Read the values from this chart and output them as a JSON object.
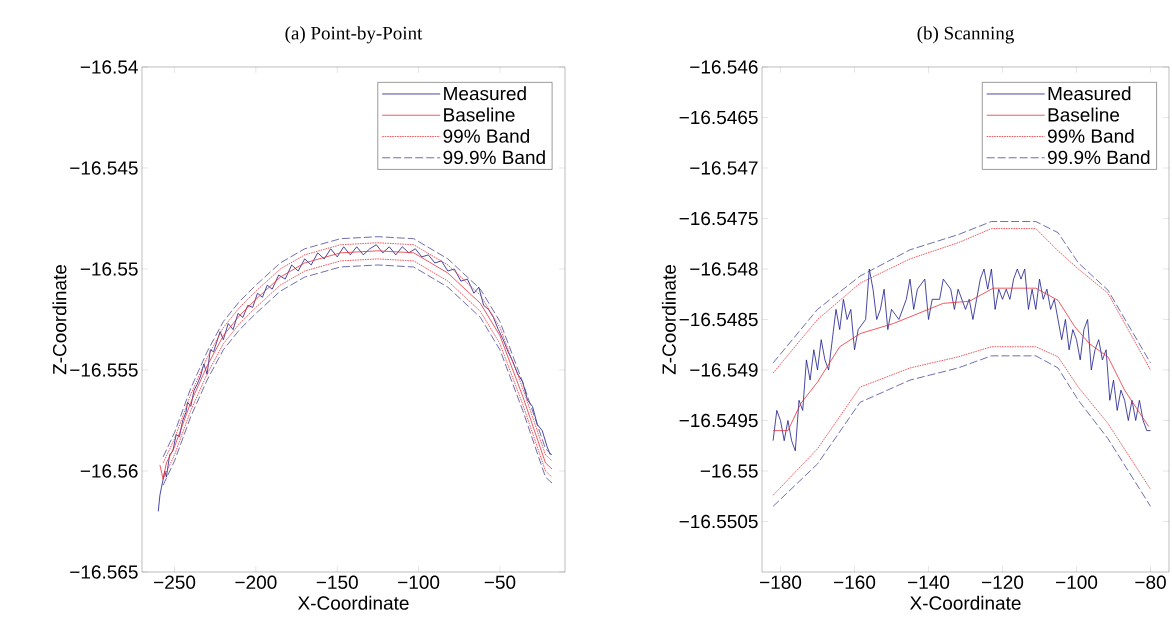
{
  "chart_data": [
    {
      "type": "line",
      "title": "(a) Point-by-Point",
      "xlabel": "X-Coordinate",
      "ylabel": "Z-Coordinate",
      "legend": "top right",
      "grid": false,
      "xlim": [
        -270,
        -10
      ],
      "ylim": [
        -16.565,
        -16.54
      ],
      "xticks": [
        {
          "value": -250,
          "label": "−250"
        },
        {
          "value": -200,
          "label": "−200"
        },
        {
          "value": -150,
          "label": "−150"
        },
        {
          "value": -100,
          "label": "−100"
        },
        {
          "value": -50,
          "label": "−50"
        }
      ],
      "yticks": [
        {
          "value": -16.565,
          "label": "−16.565"
        },
        {
          "value": -16.56,
          "label": "−16.56"
        },
        {
          "value": -16.555,
          "label": "−16.555"
        },
        {
          "value": -16.55,
          "label": "−16.55"
        },
        {
          "value": -16.545,
          "label": "−16.545"
        },
        {
          "value": -16.54,
          "label": "−16.54"
        }
      ],
      "series": [
        {
          "name": "Measured",
          "color": "#1a1a8c",
          "line_style": "solid",
          "x": [
            -260,
            -259,
            -258,
            -256,
            -255,
            -253,
            -251,
            -249,
            -247,
            -245,
            -243,
            -242,
            -240,
            -238,
            -236,
            -234,
            -232,
            -230,
            -228,
            -226,
            -224,
            -222,
            -220,
            -217,
            -214,
            -211,
            -208,
            -205,
            -202,
            -199,
            -196,
            -193,
            -190,
            -186,
            -182,
            -178,
            -174,
            -170,
            -166,
            -162,
            -158,
            -154,
            -150,
            -146,
            -142,
            -138,
            -134,
            -130,
            -126,
            -122,
            -118,
            -114,
            -110,
            -106,
            -102,
            -98,
            -94,
            -90,
            -86,
            -82,
            -78,
            -74,
            -70,
            -66,
            -63,
            -60,
            -57,
            -54,
            -51,
            -48,
            -45,
            -42,
            -39,
            -36,
            -33,
            -30,
            -27,
            -24,
            -21,
            -19
          ],
          "values": [
            -16.562,
            -16.5612,
            -16.5608,
            -16.56,
            -16.5603,
            -16.5592,
            -16.559,
            -16.5582,
            -16.5583,
            -16.5575,
            -16.5571,
            -16.5566,
            -16.5568,
            -16.556,
            -16.5557,
            -16.5553,
            -16.5547,
            -16.5552,
            -16.554,
            -16.5541,
            -16.5536,
            -16.5531,
            -16.5535,
            -16.5527,
            -16.553,
            -16.5522,
            -16.5524,
            -16.5518,
            -16.5519,
            -16.5512,
            -16.5514,
            -16.5508,
            -16.551,
            -16.5503,
            -16.5505,
            -16.5498,
            -16.5501,
            -16.5495,
            -16.5498,
            -16.5492,
            -16.5495,
            -16.549,
            -16.5494,
            -16.5489,
            -16.5493,
            -16.5489,
            -16.5493,
            -16.549,
            -16.5488,
            -16.5492,
            -16.5489,
            -16.5493,
            -16.5489,
            -16.5492,
            -16.549,
            -16.5494,
            -16.5493,
            -16.5497,
            -16.5496,
            -16.5501,
            -16.55,
            -16.5506,
            -16.5505,
            -16.5512,
            -16.5509,
            -16.5518,
            -16.552,
            -16.5524,
            -16.553,
            -16.5535,
            -16.5541,
            -16.5546,
            -16.5552,
            -16.5556,
            -16.5565,
            -16.5568,
            -16.5577,
            -16.558,
            -16.5588,
            -16.5592
          ]
        },
        {
          "name": "Baseline",
          "color": "#e8303a",
          "line_style": "solid",
          "x": [
            -259,
            -257,
            -255,
            -250,
            -240,
            -230,
            -220,
            -210,
            -200,
            -185,
            -170,
            -148,
            -125,
            -103,
            -82,
            -62,
            -50,
            -36,
            -22,
            -18
          ],
          "values": [
            -16.5597,
            -16.5604,
            -16.5596,
            -16.5588,
            -16.5566,
            -16.5548,
            -16.5533,
            -16.5523,
            -16.5515,
            -16.5504,
            -16.5497,
            -16.5492,
            -16.5491,
            -16.5492,
            -16.5502,
            -16.5517,
            -16.5533,
            -16.5563,
            -16.5596,
            -16.5599
          ]
        },
        {
          "name": "99% Band",
          "color": "#e8303a",
          "line_style": "dotted",
          "x": [
            -257,
            -250,
            -240,
            -230,
            -220,
            -210,
            -200,
            -185,
            -170,
            -148,
            -125,
            -103,
            -82,
            -62,
            -50,
            -36,
            -22,
            -18
          ],
          "values": [
            -16.5596,
            -16.5584,
            -16.5562,
            -16.5544,
            -16.5529,
            -16.5519,
            -16.5511,
            -16.55,
            -16.5493,
            -16.5488,
            -16.5487,
            -16.5488,
            -16.5498,
            -16.5513,
            -16.5529,
            -16.5559,
            -16.5592,
            -16.5595
          ]
        },
        {
          "color": "#e8303a",
          "line_style": "dotted",
          "x": [
            -257,
            -250,
            -240,
            -230,
            -220,
            -210,
            -200,
            -185,
            -170,
            -148,
            -125,
            -103,
            -82,
            -62,
            -50,
            -36,
            -22,
            -18
          ],
          "values": [
            -16.5604,
            -16.5592,
            -16.557,
            -16.5552,
            -16.5537,
            -16.5527,
            -16.5519,
            -16.5508,
            -16.5501,
            -16.5496,
            -16.5495,
            -16.5496,
            -16.5506,
            -16.5521,
            -16.5537,
            -16.5567,
            -16.56,
            -16.5603
          ]
        },
        {
          "name": "99.9% Band",
          "color": "#4a4a9a",
          "line_style": "dashed",
          "x": [
            -257,
            -250,
            -240,
            -230,
            -220,
            -210,
            -200,
            -185,
            -170,
            -148,
            -125,
            -103,
            -82,
            -62,
            -50,
            -36,
            -22,
            -18
          ],
          "values": [
            -16.5593,
            -16.5581,
            -16.5559,
            -16.5541,
            -16.5526,
            -16.5516,
            -16.5508,
            -16.5497,
            -16.549,
            -16.5485,
            -16.5484,
            -16.5485,
            -16.5495,
            -16.551,
            -16.5526,
            -16.5556,
            -16.5589,
            -16.5592
          ]
        },
        {
          "color": "#4a4a9a",
          "line_style": "dashed",
          "x": [
            -257,
            -250,
            -240,
            -230,
            -220,
            -210,
            -200,
            -185,
            -170,
            -148,
            -125,
            -103,
            -82,
            -62,
            -50,
            -36,
            -22,
            -18
          ],
          "values": [
            -16.5607,
            -16.5595,
            -16.5573,
            -16.5555,
            -16.554,
            -16.553,
            -16.5522,
            -16.5511,
            -16.5504,
            -16.5499,
            -16.5498,
            -16.5499,
            -16.5509,
            -16.5524,
            -16.554,
            -16.557,
            -16.5603,
            -16.5606
          ]
        }
      ]
    },
    {
      "type": "line",
      "title": "(b) Scanning",
      "xlabel": "X-Coordinate",
      "ylabel": "Z-Coordinate",
      "legend": "top right",
      "grid": false,
      "xlim": [
        -185,
        -75
      ],
      "ylim": [
        -16.551,
        -16.546
      ],
      "xticks": [
        {
          "value": -180,
          "label": "−180"
        },
        {
          "value": -160,
          "label": "−160"
        },
        {
          "value": -140,
          "label": "−140"
        },
        {
          "value": -120,
          "label": "−120"
        },
        {
          "value": -100,
          "label": "−100"
        },
        {
          "value": -80,
          "label": "−80"
        }
      ],
      "yticks": [
        {
          "value": -16.5505,
          "label": "−16.5505"
        },
        {
          "value": -16.55,
          "label": "−16.55"
        },
        {
          "value": -16.5495,
          "label": "−16.5495"
        },
        {
          "value": -16.549,
          "label": "−16.549"
        },
        {
          "value": -16.5485,
          "label": "−16.5485"
        },
        {
          "value": -16.548,
          "label": "−16.548"
        },
        {
          "value": -16.5475,
          "label": "−16.5475"
        },
        {
          "value": -16.547,
          "label": "−16.547"
        },
        {
          "value": -16.5465,
          "label": "−16.5465"
        },
        {
          "value": -16.546,
          "label": "−16.546"
        }
      ],
      "series": [
        {
          "name": "Measured",
          "color": "#1a1a8c",
          "line_style": "solid",
          "x": [
            -182,
            -181,
            -180,
            -179,
            -178,
            -177,
            -176,
            -175,
            -174,
            -173,
            -172,
            -171,
            -170,
            -169,
            -168,
            -167,
            -166,
            -165,
            -164,
            -163,
            -162,
            -161,
            -160,
            -159,
            -157,
            -156,
            -155,
            -154,
            -153,
            -152,
            -151,
            -150,
            -148,
            -146,
            -145,
            -144,
            -143,
            -141,
            -140,
            -139,
            -137,
            -136,
            -134,
            -133,
            -132,
            -130,
            -129,
            -128,
            -127,
            -126,
            -125,
            -124,
            -123,
            -122,
            -121,
            -120,
            -119,
            -118,
            -117,
            -116,
            -115,
            -114,
            -113,
            -112,
            -111,
            -110,
            -109,
            -108,
            -107,
            -106,
            -105,
            -104,
            -103,
            -102,
            -101,
            -100,
            -99,
            -98,
            -97,
            -96,
            -95,
            -94,
            -93,
            -92,
            -91,
            -90,
            -89,
            -88,
            -87,
            -86,
            -85,
            -84,
            -83,
            -82,
            -81,
            -80
          ],
          "values": [
            -16.5497,
            -16.5494,
            -16.5495,
            -16.5497,
            -16.5495,
            -16.5497,
            -16.5498,
            -16.5493,
            -16.5494,
            -16.5489,
            -16.5491,
            -16.5488,
            -16.549,
            -16.5487,
            -16.5489,
            -16.549,
            -16.5487,
            -16.5484,
            -16.5486,
            -16.5483,
            -16.5485,
            -16.5484,
            -16.5488,
            -16.5486,
            -16.5485,
            -16.548,
            -16.5482,
            -16.5485,
            -16.5484,
            -16.5482,
            -16.5486,
            -16.5484,
            -16.5485,
            -16.5483,
            -16.5481,
            -16.5484,
            -16.5482,
            -16.5481,
            -16.5485,
            -16.5483,
            -16.5483,
            -16.5481,
            -16.5482,
            -16.5484,
            -16.5482,
            -16.5484,
            -16.5483,
            -16.5485,
            -16.5483,
            -16.5481,
            -16.548,
            -16.5482,
            -16.548,
            -16.5484,
            -16.5482,
            -16.5483,
            -16.5482,
            -16.5483,
            -16.5481,
            -16.548,
            -16.5481,
            -16.548,
            -16.5484,
            -16.5482,
            -16.5484,
            -16.5481,
            -16.5483,
            -16.5482,
            -16.5484,
            -16.5483,
            -16.5485,
            -16.5487,
            -16.5485,
            -16.5488,
            -16.5486,
            -16.5487,
            -16.5489,
            -16.5486,
            -16.5485,
            -16.549,
            -16.5488,
            -16.5487,
            -16.5489,
            -16.5488,
            -16.5493,
            -16.5491,
            -16.5494,
            -16.5492,
            -16.5493,
            -16.5495,
            -16.5493,
            -16.5495,
            -16.5493,
            -16.5495,
            -16.5496,
            -16.5496
          ]
        },
        {
          "name": "Baseline",
          "color": "#e8303a",
          "line_style": "solid",
          "x": [
            -182,
            -178,
            -174.5,
            -170,
            -164,
            -158.5,
            -149.5,
            -136,
            -129,
            -122.5,
            -111,
            -105,
            -100.5,
            -96.5,
            -91.5,
            -87,
            -80.5
          ],
          "values": [
            -16.5496,
            -16.5496,
            -16.54933,
            -16.54912,
            -16.54877,
            -16.54864,
            -16.54854,
            -16.54834,
            -16.54832,
            -16.54819,
            -16.54819,
            -16.54831,
            -16.54857,
            -16.54874,
            -16.54887,
            -16.5492,
            -16.54956
          ]
        },
        {
          "name": "99% Band",
          "color": "#e8303a",
          "line_style": "dotted",
          "x": [
            -182,
            -170,
            -158.5,
            -145,
            -132,
            -123,
            -111,
            -105,
            -99.5,
            -91.5,
            -80
          ],
          "values": [
            -16.54903,
            -16.5485,
            -16.54814,
            -16.5479,
            -16.54774,
            -16.5476,
            -16.5476,
            -16.54782,
            -16.548,
            -16.54824,
            -16.549
          ]
        },
        {
          "color": "#e8303a",
          "line_style": "dotted",
          "x": [
            -182,
            -170,
            -158.5,
            -145,
            -132,
            -123,
            -111,
            -105,
            -99.5,
            -91.5,
            -80
          ],
          "values": [
            -16.55024,
            -16.54978,
            -16.54917,
            -16.54898,
            -16.54887,
            -16.54877,
            -16.54877,
            -16.54887,
            -16.54917,
            -16.54953,
            -16.55018
          ]
        },
        {
          "name": "99.9% Band",
          "color": "#4a4a9a",
          "line_style": "dashed",
          "x": [
            -182,
            -170,
            -158.5,
            -145,
            -132,
            -123,
            -111,
            -105,
            -99.5,
            -91.5,
            -80
          ],
          "values": [
            -16.54893,
            -16.5484,
            -16.54807,
            -16.54781,
            -16.54766,
            -16.54753,
            -16.54753,
            -16.54764,
            -16.54794,
            -16.54821,
            -16.54893
          ]
        },
        {
          "color": "#4a4a9a",
          "line_style": "dashed",
          "x": [
            -182,
            -170,
            -158.5,
            -145,
            -132,
            -123,
            -111,
            -105,
            -99.5,
            -91.5,
            -80
          ],
          "values": [
            -16.55035,
            -16.54993,
            -16.54932,
            -16.5491,
            -16.54898,
            -16.54886,
            -16.54886,
            -16.54898,
            -16.5493,
            -16.54968,
            -16.55035
          ]
        }
      ]
    }
  ]
}
